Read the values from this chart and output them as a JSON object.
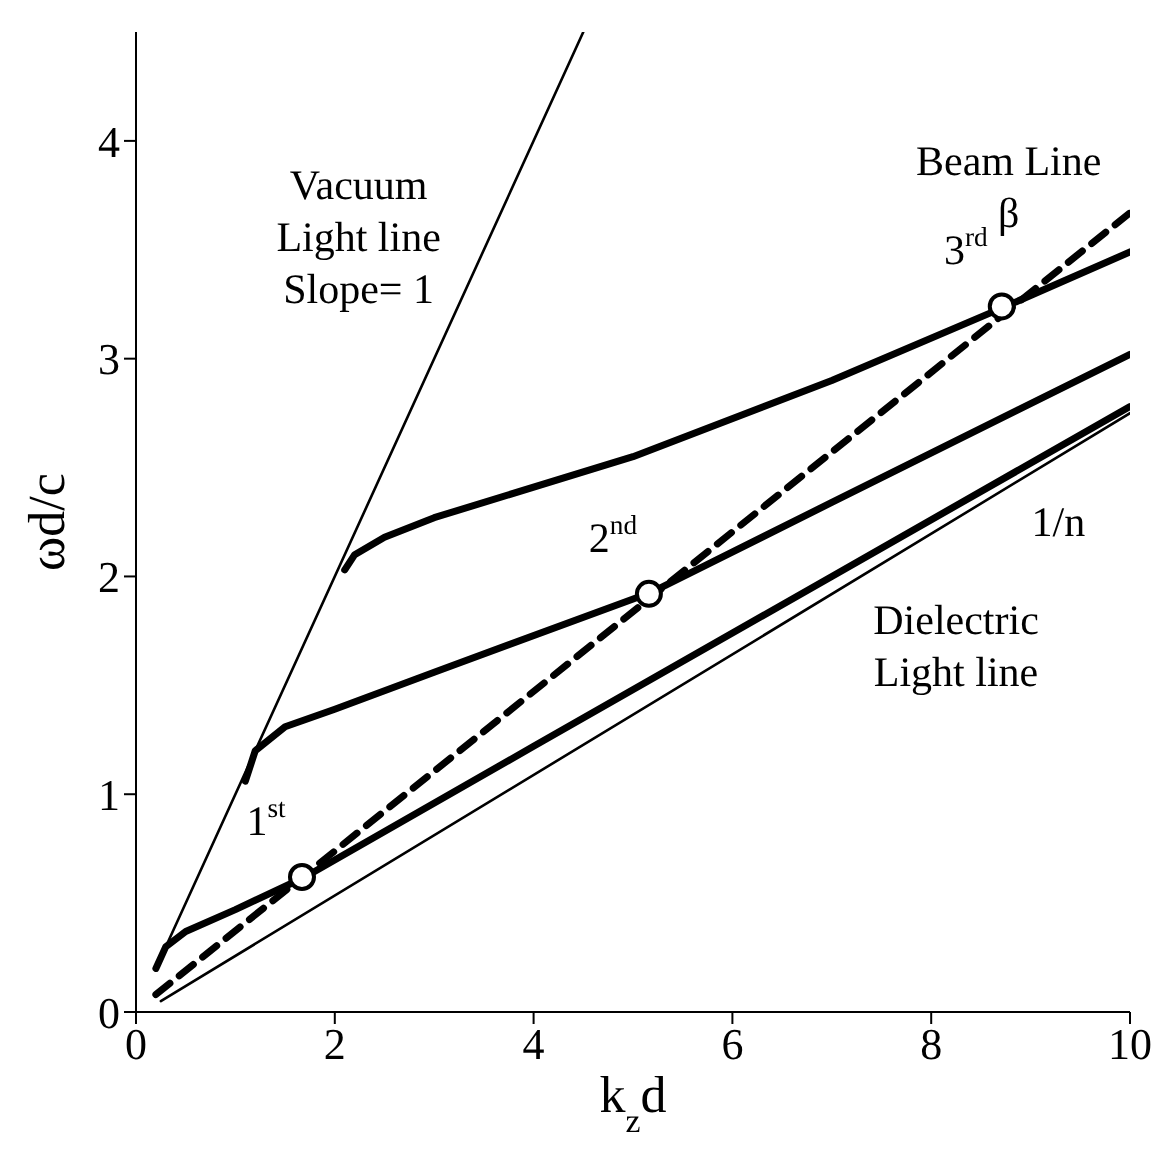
{
  "chart_data": {
    "type": "line",
    "xlabel": "k$_{z}$d",
    "ylabel": "ωd/c",
    "xlim": [
      0,
      10
    ],
    "ylim": [
      0,
      4.5
    ],
    "xticks": [
      0,
      2,
      4,
      6,
      8,
      10
    ],
    "yticks": [
      0,
      1,
      2,
      3,
      4
    ],
    "grid": false,
    "legend": false,
    "marker": "none",
    "series": [
      {
        "color": "#000000",
        "line_style": "solid",
        "x": [
          0.2,
          4.5
        ],
        "values": [
          0.2,
          4.5
        ]
      },
      {
        "color": "#000000",
        "line_style": "solid",
        "x": [
          0.25,
          10
        ],
        "values": [
          0.05,
          2.75
        ]
      },
      {
        "color": "#000000",
        "line_style": "solid",
        "x": [
          0.2,
          0.3,
          0.5,
          1,
          1.7,
          4,
          7,
          10
        ],
        "values": [
          0.2,
          0.3,
          0.37,
          0.47,
          0.62,
          1.22,
          2.0,
          2.78
        ]
      },
      {
        "color": "#000000",
        "line_style": "solid",
        "x": [
          1.1,
          1.2,
          1.5,
          2,
          3,
          5.2,
          7,
          10
        ],
        "values": [
          1.06,
          1.2,
          1.31,
          1.39,
          1.56,
          1.93,
          2.34,
          3.02
        ]
      },
      {
        "color": "#000000",
        "line_style": "solid",
        "x": [
          2.1,
          2.2,
          2.5,
          3,
          5,
          7,
          8.75,
          10
        ],
        "values": [
          2.03,
          2.1,
          2.18,
          2.27,
          2.55,
          2.9,
          3.24,
          3.49
        ]
      },
      {
        "color": "#000000",
        "line_style": "dashed",
        "x": [
          0.2,
          10
        ],
        "values": [
          0.08,
          3.67
        ]
      },
      {
        "type": "scatter",
        "marker": "circle",
        "color": "#000000",
        "x": [
          1.67,
          5.16,
          8.71
        ],
        "values": [
          0.62,
          1.92,
          3.24
        ]
      }
    ],
    "annotations": [
      "Vacuum\nLight line\nSlope= 1",
      {
        "text": "1$^{st}$",
        "x": 1.67,
        "y": 0.62
      },
      {
        "text": "2$^{nd}$",
        "x": 5.16,
        "y": 1.92
      },
      {
        "text": "3$^{rd}$",
        "x": 8.71,
        "y": 3.24
      },
      "Beam Line\nβ",
      "1/n",
      "Dielectric\nLight line"
    ]
  }
}
